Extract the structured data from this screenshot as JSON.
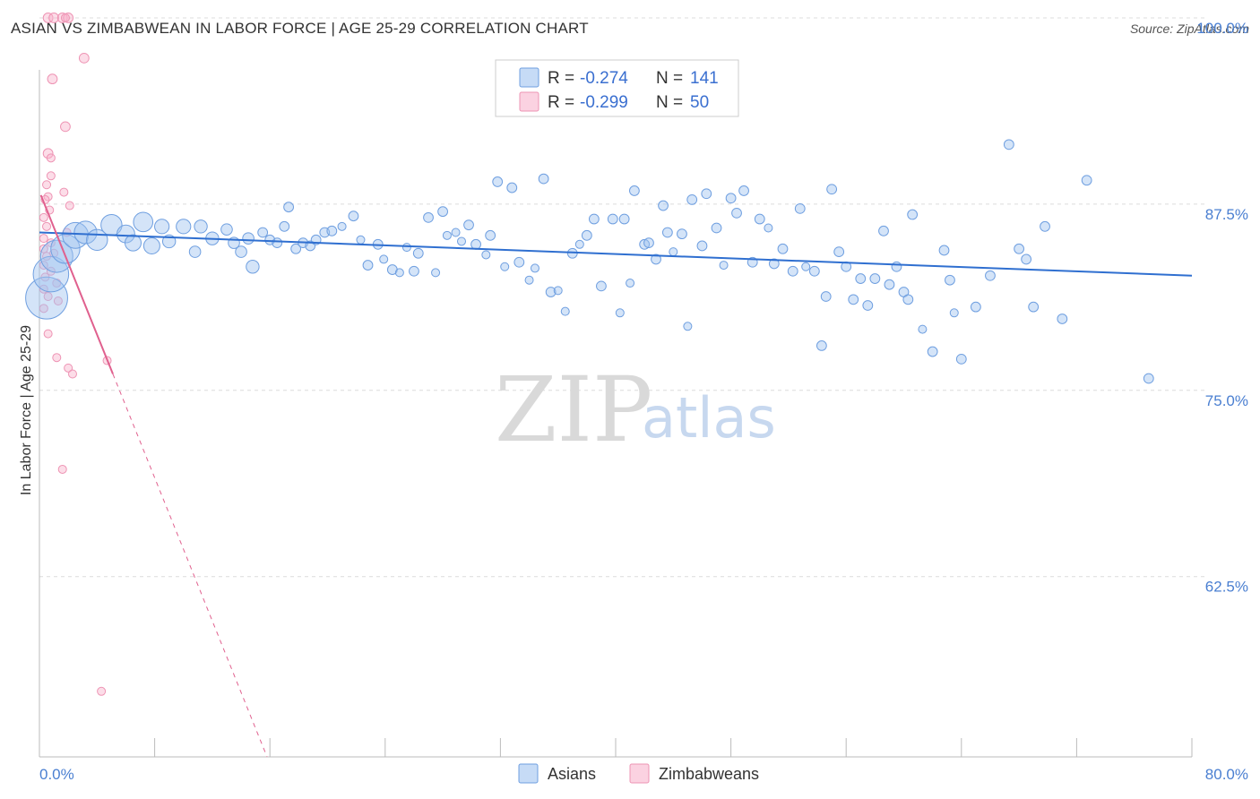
{
  "title": "ASIAN VS ZIMBABWEAN IN LABOR FORCE | AGE 25-29 CORRELATION CHART",
  "source": "Source: ZipAtlas.com",
  "watermark": {
    "zip": "ZIP",
    "atlas": "atlas"
  },
  "colors": {
    "asian_fill": "rgba(160,195,240,0.45)",
    "asian_stroke": "#6f9fe0",
    "asian_line": "#2f6fd0",
    "zim_fill": "rgba(248,180,205,0.45)",
    "zim_stroke": "#ee94b4",
    "zim_line": "#e0608e",
    "tick_blue": "#4a7fd1"
  },
  "legend": {
    "rows": [
      {
        "r_label": "R =",
        "r_value": "-0.274",
        "n_label": "N =",
        "n_value": "141"
      },
      {
        "r_label": "R =",
        "r_value": "-0.299",
        "n_label": "N =",
        "n_value": "50"
      }
    ]
  },
  "chart_data": {
    "type": "scatter",
    "title": "ASIAN VS ZIMBABWEAN IN LABOR FORCE | AGE 25-29 CORRELATION CHART",
    "xlabel": "",
    "ylabel": "In Labor Force | Age 25-29",
    "xlim": [
      0,
      80
    ],
    "ylim": [
      50.4,
      101.2
    ],
    "x_tick_labels": [
      "0.0%",
      "80.0%"
    ],
    "y_ticks": [
      62.5,
      75.0,
      87.5,
      100.0
    ],
    "y_tick_labels": [
      "62.5%",
      "75.0%",
      "87.5%",
      "100.0%"
    ],
    "legend_labels": [
      "Asians",
      "Zimbabweans"
    ],
    "series": [
      {
        "name": "Asians",
        "R": -0.274,
        "N": 141,
        "trend": {
          "x": [
            0,
            80
          ],
          "y": [
            85.6,
            82.7
          ]
        },
        "points": [
          [
            0.5,
            81.2,
            2.6
          ],
          [
            0.8,
            82.8,
            2.2
          ],
          [
            1.2,
            84.0,
            2.0
          ],
          [
            1.8,
            84.5,
            1.8
          ],
          [
            2.5,
            85.4,
            1.6
          ],
          [
            3.2,
            85.6,
            1.4
          ],
          [
            4.0,
            85.1,
            1.3
          ],
          [
            5.0,
            86.1,
            1.3
          ],
          [
            6.0,
            85.5,
            1.1
          ],
          [
            7.2,
            86.3,
            1.2
          ],
          [
            6.5,
            84.9,
            1.0
          ],
          [
            7.8,
            84.7,
            1.0
          ],
          [
            8.5,
            86.0,
            0.9
          ],
          [
            9.0,
            85.0,
            0.8
          ],
          [
            10.0,
            86.0,
            0.9
          ],
          [
            10.8,
            84.3,
            0.7
          ],
          [
            11.2,
            86.0,
            0.8
          ],
          [
            12.0,
            85.2,
            0.8
          ],
          [
            13.0,
            85.8,
            0.7
          ],
          [
            13.5,
            84.9,
            0.7
          ],
          [
            14.0,
            84.3,
            0.7
          ],
          [
            14.5,
            85.2,
            0.7
          ],
          [
            14.8,
            83.3,
            0.8
          ],
          [
            15.5,
            85.6,
            0.6
          ],
          [
            16.0,
            85.1,
            0.6
          ],
          [
            16.5,
            84.9,
            0.6
          ],
          [
            17.0,
            86.0,
            0.6
          ],
          [
            17.3,
            87.3,
            0.6
          ],
          [
            17.8,
            84.5,
            0.6
          ],
          [
            18.3,
            84.9,
            0.6
          ],
          [
            18.8,
            84.7,
            0.6
          ],
          [
            19.2,
            85.1,
            0.6
          ],
          [
            19.8,
            85.6,
            0.6
          ],
          [
            20.3,
            85.7,
            0.6
          ],
          [
            21.0,
            86.0,
            0.5
          ],
          [
            21.8,
            86.7,
            0.6
          ],
          [
            22.3,
            85.1,
            0.5
          ],
          [
            22.8,
            83.4,
            0.6
          ],
          [
            23.5,
            84.8,
            0.6
          ],
          [
            23.9,
            83.8,
            0.5
          ],
          [
            24.5,
            83.1,
            0.6
          ],
          [
            25.0,
            82.9,
            0.5
          ],
          [
            25.5,
            84.6,
            0.5
          ],
          [
            26.0,
            83.0,
            0.6
          ],
          [
            26.3,
            84.2,
            0.6
          ],
          [
            27.0,
            86.6,
            0.6
          ],
          [
            27.5,
            82.9,
            0.5
          ],
          [
            28.0,
            87.0,
            0.6
          ],
          [
            28.3,
            85.4,
            0.5
          ],
          [
            28.9,
            85.6,
            0.5
          ],
          [
            29.3,
            85.0,
            0.5
          ],
          [
            29.8,
            86.1,
            0.6
          ],
          [
            30.3,
            84.8,
            0.6
          ],
          [
            31.0,
            84.1,
            0.5
          ],
          [
            31.3,
            85.4,
            0.6
          ],
          [
            31.8,
            89.0,
            0.6
          ],
          [
            32.3,
            83.3,
            0.5
          ],
          [
            32.8,
            88.6,
            0.6
          ],
          [
            33.3,
            83.6,
            0.6
          ],
          [
            34.0,
            82.4,
            0.5
          ],
          [
            34.4,
            83.2,
            0.5
          ],
          [
            35.0,
            89.2,
            0.6
          ],
          [
            35.5,
            81.6,
            0.6
          ],
          [
            36.0,
            81.7,
            0.5
          ],
          [
            36.5,
            80.3,
            0.5
          ],
          [
            37.0,
            84.2,
            0.6
          ],
          [
            37.5,
            84.8,
            0.5
          ],
          [
            38.0,
            85.4,
            0.6
          ],
          [
            38.5,
            86.5,
            0.6
          ],
          [
            39.0,
            82.0,
            0.6
          ],
          [
            39.8,
            86.5,
            0.6
          ],
          [
            40.3,
            80.2,
            0.5
          ],
          [
            40.6,
            86.5,
            0.6
          ],
          [
            41.0,
            82.2,
            0.5
          ],
          [
            41.3,
            88.4,
            0.6
          ],
          [
            42.0,
            84.8,
            0.6
          ],
          [
            42.3,
            84.9,
            0.6
          ],
          [
            42.8,
            83.8,
            0.6
          ],
          [
            43.3,
            87.4,
            0.6
          ],
          [
            43.6,
            85.6,
            0.6
          ],
          [
            44.0,
            84.3,
            0.5
          ],
          [
            44.6,
            85.5,
            0.6
          ],
          [
            45.0,
            79.3,
            0.5
          ],
          [
            45.3,
            87.8,
            0.6
          ],
          [
            46.0,
            84.7,
            0.6
          ],
          [
            46.3,
            88.2,
            0.6
          ],
          [
            47.0,
            85.9,
            0.6
          ],
          [
            47.5,
            83.4,
            0.5
          ],
          [
            48.0,
            87.9,
            0.6
          ],
          [
            48.4,
            86.9,
            0.6
          ],
          [
            48.9,
            88.4,
            0.6
          ],
          [
            49.5,
            83.6,
            0.6
          ],
          [
            50.0,
            86.5,
            0.6
          ],
          [
            50.6,
            85.9,
            0.5
          ],
          [
            51.0,
            83.5,
            0.6
          ],
          [
            51.6,
            84.5,
            0.6
          ],
          [
            52.3,
            83.0,
            0.6
          ],
          [
            52.8,
            87.2,
            0.6
          ],
          [
            53.2,
            83.3,
            0.5
          ],
          [
            53.8,
            83.0,
            0.6
          ],
          [
            54.3,
            78.0,
            0.6
          ],
          [
            54.6,
            81.3,
            0.6
          ],
          [
            55.0,
            88.5,
            0.6
          ],
          [
            55.5,
            84.3,
            0.6
          ],
          [
            56.0,
            83.3,
            0.6
          ],
          [
            56.5,
            81.1,
            0.6
          ],
          [
            57.0,
            82.5,
            0.6
          ],
          [
            57.5,
            80.7,
            0.6
          ],
          [
            58.0,
            82.5,
            0.6
          ],
          [
            58.6,
            85.7,
            0.6
          ],
          [
            59.0,
            82.1,
            0.6
          ],
          [
            59.5,
            83.3,
            0.6
          ],
          [
            60.0,
            81.6,
            0.6
          ],
          [
            60.3,
            81.1,
            0.6
          ],
          [
            60.6,
            86.8,
            0.6
          ],
          [
            61.3,
            79.1,
            0.5
          ],
          [
            62.0,
            77.6,
            0.6
          ],
          [
            62.8,
            84.4,
            0.6
          ],
          [
            63.2,
            82.4,
            0.6
          ],
          [
            63.5,
            80.2,
            0.5
          ],
          [
            64.0,
            77.1,
            0.6
          ],
          [
            65.0,
            80.6,
            0.6
          ],
          [
            66.0,
            82.7,
            0.6
          ],
          [
            67.3,
            91.5,
            0.6
          ],
          [
            68.0,
            84.5,
            0.6
          ],
          [
            68.5,
            83.8,
            0.6
          ],
          [
            69.0,
            80.6,
            0.6
          ],
          [
            69.8,
            86.0,
            0.6
          ],
          [
            71.0,
            79.8,
            0.6
          ],
          [
            72.7,
            89.1,
            0.6
          ],
          [
            77.0,
            75.8,
            0.6
          ]
        ]
      },
      {
        "name": "Zimbabweans",
        "R": -0.299,
        "N": 50,
        "trend": {
          "x": [
            0.1,
            5.1
          ],
          "y": [
            88.1,
            76.1
          ]
        },
        "trend_extension": {
          "x": [
            5.1,
            15.8
          ],
          "y": [
            76.1,
            50.4
          ]
        },
        "points": [
          [
            0.6,
            100.0,
            0.6
          ],
          [
            1.0,
            100.0,
            0.6
          ],
          [
            1.6,
            100.0,
            0.6
          ],
          [
            2.0,
            100.0,
            0.6
          ],
          [
            1.8,
            100.0,
            0.5
          ],
          [
            3.1,
            97.3,
            0.6
          ],
          [
            0.9,
            95.9,
            0.6
          ],
          [
            1.8,
            92.7,
            0.6
          ],
          [
            0.6,
            90.9,
            0.6
          ],
          [
            0.8,
            90.6,
            0.5
          ],
          [
            0.8,
            89.4,
            0.5
          ],
          [
            0.5,
            88.8,
            0.5
          ],
          [
            1.7,
            88.3,
            0.5
          ],
          [
            0.6,
            88.0,
            0.5
          ],
          [
            0.4,
            87.8,
            0.5
          ],
          [
            2.1,
            87.4,
            0.5
          ],
          [
            0.7,
            87.1,
            0.5
          ],
          [
            0.3,
            86.6,
            0.5
          ],
          [
            0.5,
            86.0,
            0.5
          ],
          [
            1.9,
            85.6,
            0.5
          ],
          [
            0.3,
            85.2,
            0.5
          ],
          [
            0.8,
            84.9,
            0.5
          ],
          [
            0.3,
            84.5,
            0.5
          ],
          [
            1.0,
            84.2,
            0.5
          ],
          [
            0.5,
            84.0,
            0.5
          ],
          [
            0.3,
            83.4,
            0.5
          ],
          [
            0.8,
            83.0,
            0.5
          ],
          [
            0.4,
            82.6,
            0.5
          ],
          [
            1.2,
            82.2,
            0.5
          ],
          [
            0.3,
            81.8,
            0.5
          ],
          [
            0.6,
            81.3,
            0.5
          ],
          [
            1.3,
            81.0,
            0.5
          ],
          [
            0.3,
            80.5,
            0.5
          ],
          [
            0.6,
            78.8,
            0.5
          ],
          [
            1.2,
            77.2,
            0.5
          ],
          [
            4.7,
            77.0,
            0.5
          ],
          [
            2.0,
            76.5,
            0.5
          ],
          [
            2.3,
            76.1,
            0.5
          ],
          [
            1.6,
            69.7,
            0.5
          ],
          [
            4.3,
            54.8,
            0.5
          ]
        ]
      }
    ]
  }
}
